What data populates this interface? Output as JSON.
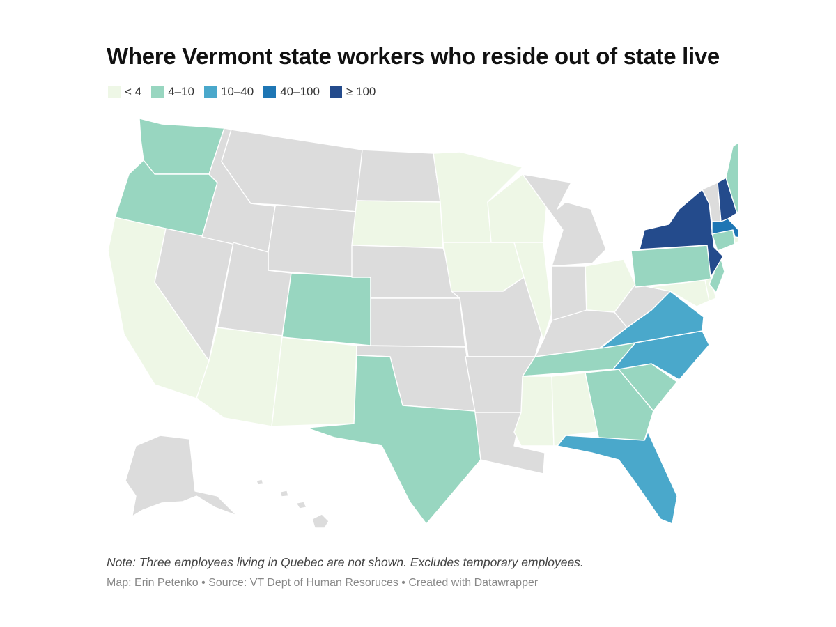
{
  "title": "Where Vermont state workers who reside out of state live",
  "legend": [
    {
      "label": "< 4",
      "color": "#eef7e6"
    },
    {
      "label": "4–10",
      "color": "#98d6c0"
    },
    {
      "label": "10–40",
      "color": "#4aa8cb"
    },
    {
      "label": "40–100",
      "color": "#1e76b4"
    },
    {
      "label": "≥ 100",
      "color": "#244b8c"
    }
  ],
  "no_data_color": "#dcdcdc",
  "note": "Note: Three employees living in Quebec are not shown. Excludes temporary employees.",
  "credit": "Map: Erin Petenko • Source: VT Dept of Human Resoruces • Created with Datawrapper",
  "states": {
    "WA": 1,
    "OR": 1,
    "CA": 0,
    "NV": -1,
    "ID": -1,
    "MT": -1,
    "WY": -1,
    "UT": -1,
    "AZ": 0,
    "CO": 1,
    "NM": 0,
    "ND": -1,
    "SD": 0,
    "NE": -1,
    "KS": -1,
    "OK": -1,
    "TX": 1,
    "MN": 0,
    "IA": 0,
    "MO": -1,
    "AR": -1,
    "LA": -1,
    "WI": 0,
    "IL": 0,
    "MI": -1,
    "IN": -1,
    "OH": 0,
    "KY": -1,
    "TN": 1,
    "MS": 0,
    "AL": 0,
    "GA": 1,
    "FL": 2,
    "SC": 1,
    "NC": 2,
    "VA": 2,
    "WV": -1,
    "MD": 0,
    "DE": 0,
    "PA": 1,
    "NJ": 1,
    "NY": 4,
    "CT": 1,
    "RI": 0,
    "MA": 3,
    "VT": -1,
    "NH": 4,
    "ME": 1,
    "AK": -1,
    "HI": -1
  }
}
